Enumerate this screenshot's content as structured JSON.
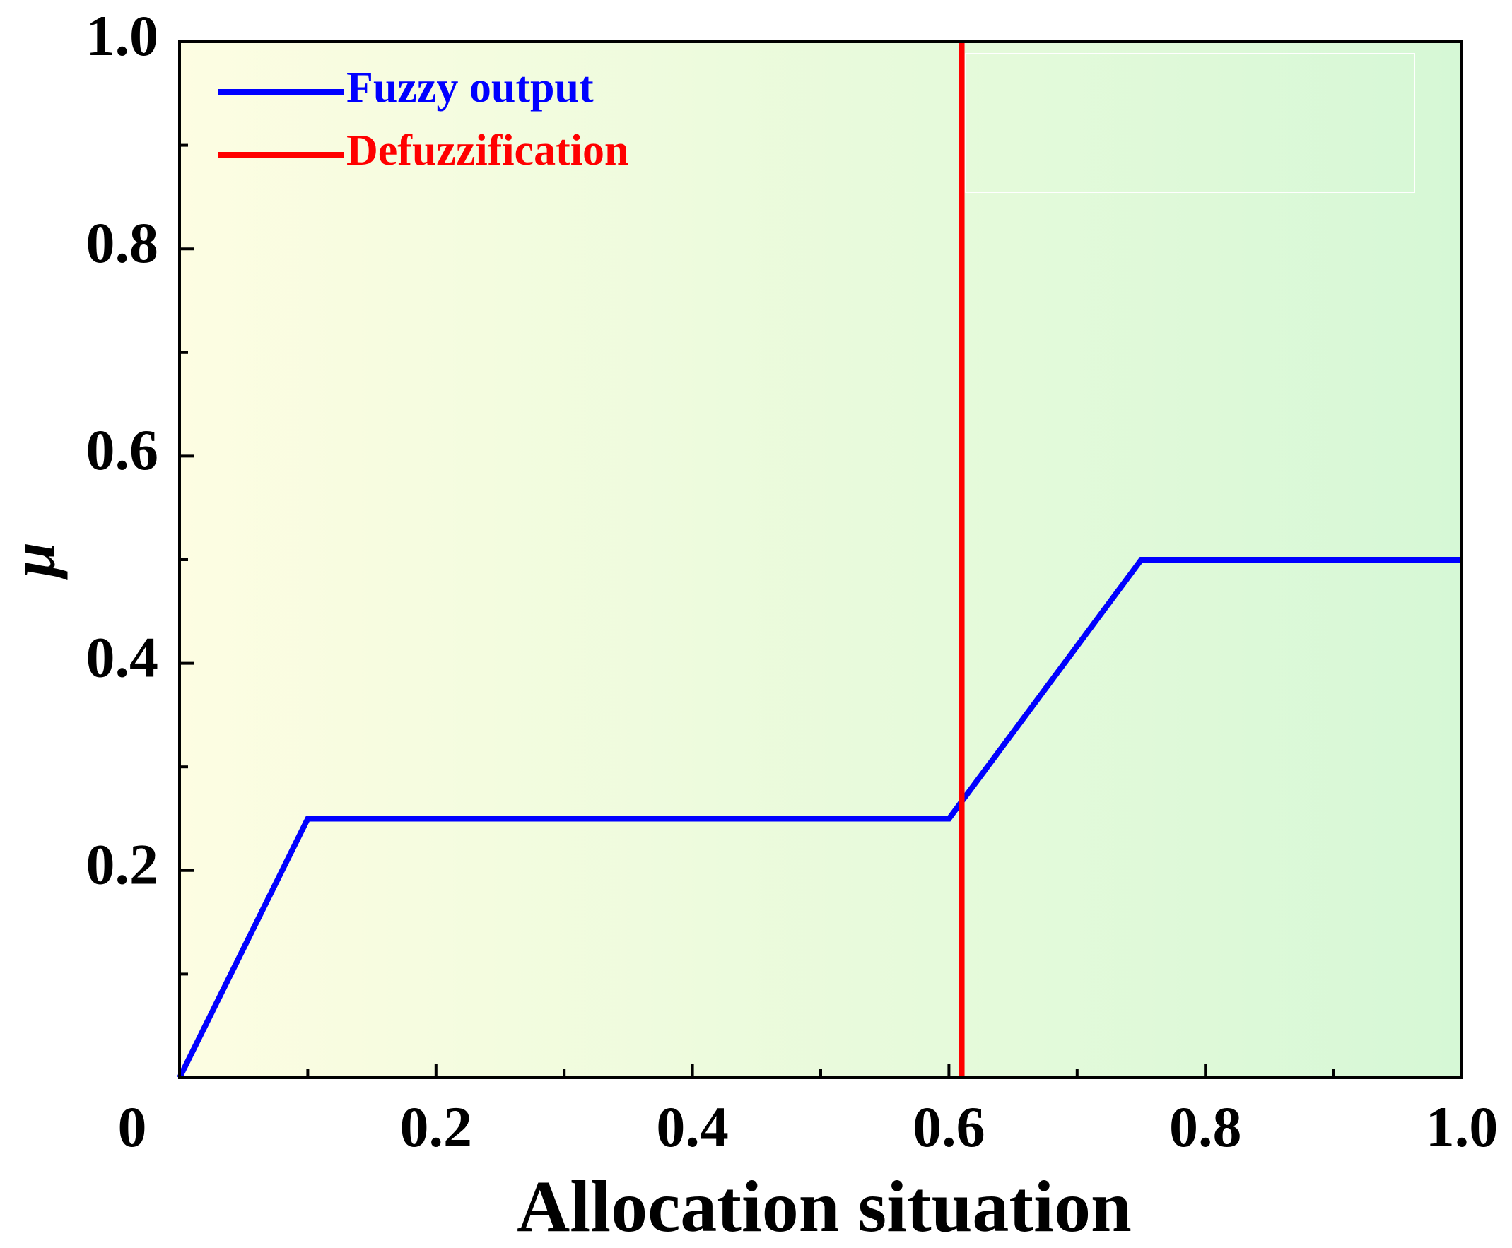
{
  "chart_data": {
    "type": "line",
    "xlabel": "Allocation situation",
    "ylabel": "μ",
    "series": [
      {
        "name": "Fuzzy output",
        "color": "#0000ff",
        "x": [
          0,
          0.1,
          0.6,
          0.75,
          1
        ],
        "values": [
          0,
          0.25,
          0.25,
          0.5,
          0.5
        ]
      },
      {
        "name": "Defuzzification",
        "color": "#ff0000",
        "x": [
          0.61,
          0.61
        ],
        "values": [
          0,
          1
        ]
      }
    ],
    "xlim": [
      0,
      1
    ],
    "ylim": [
      0,
      1
    ],
    "xticks": [
      0,
      0.2,
      0.4,
      0.6,
      0.8,
      {
        "value": 1,
        "label": "1.0"
      }
    ],
    "yticks": [
      0.2,
      0.4,
      0.6,
      0.8,
      {
        "value": 1,
        "label": "1.0"
      }
    ],
    "legend": "upper-left",
    "grid": false
  }
}
